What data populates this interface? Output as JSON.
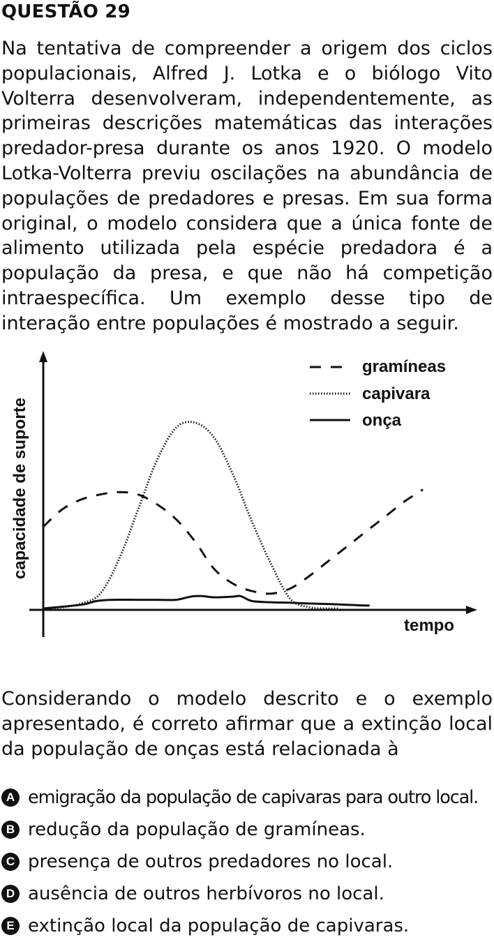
{
  "question": {
    "title": "QUESTÃO 29",
    "intro": "Na tentativa de compreender a origem dos ciclos populacionais, Alfred J. Lotka e o biólogo Vito Volterra desenvolveram, independentemente, as primeiras descrições matemáticas das interações predador-presa durante os anos 1920. O modelo Lotka-Volterra previu oscilações na abundância de populações de predadores e presas. Em sua forma original, o modelo considera que a única fonte de alimento utilizada pela espécie predadora é a população da presa, e que não há competição intraespecífica. Um exemplo desse tipo de interação entre populações é mostrado a seguir.",
    "prompt": "Considerando o modelo descrito e o exemplo apresentado, é correto afirmar que a extinção local da população de onças está relacionada à",
    "options": [
      {
        "letter": "A",
        "text": "emigração da população de capivaras para outro local."
      },
      {
        "letter": "B",
        "text": "redução da população de gramíneas."
      },
      {
        "letter": "C",
        "text": "presença de outros predadores no local."
      },
      {
        "letter": "D",
        "text": "ausência de outros herbívoros no local."
      },
      {
        "letter": "E",
        "text": "extinção local da população de capivaras."
      }
    ]
  },
  "chart_data": {
    "type": "line",
    "xlabel": "tempo",
    "ylabel": "capacidade de suporte",
    "xlim": [
      0,
      100
    ],
    "ylim": [
      0,
      100
    ],
    "grid": false,
    "legend": "top-right",
    "series": [
      {
        "name": "gramíneas",
        "style": "dashed",
        "color": "#111111",
        "x": [
          0,
          5,
          10,
          15,
          20,
          25,
          30,
          35,
          40,
          45,
          50,
          55,
          60,
          65,
          70,
          75,
          80,
          85,
          90,
          95,
          100
        ],
        "y": [
          33,
          40,
          44,
          46,
          47,
          46,
          42,
          36,
          27,
          16,
          10,
          7,
          6,
          8,
          13,
          19,
          25,
          31,
          37,
          43,
          48
        ]
      },
      {
        "name": "capivara",
        "style": "dotted",
        "color": "#111111",
        "x": [
          0,
          5,
          10,
          15,
          20,
          25,
          30,
          35,
          40,
          45,
          50,
          55,
          60,
          65,
          70,
          75,
          78
        ],
        "y": [
          0,
          0.5,
          2,
          6,
          20,
          40,
          60,
          73,
          75,
          69,
          54,
          35,
          18,
          4,
          0.5,
          0,
          0
        ]
      },
      {
        "name": "onça",
        "style": "solid",
        "color": "#111111",
        "x": [
          0,
          10,
          14,
          18,
          25,
          30,
          35,
          38,
          40,
          42,
          45,
          50,
          52,
          55,
          60,
          65,
          70,
          75,
          80,
          85,
          86
        ],
        "y": [
          0,
          1.5,
          3,
          3.5,
          3.5,
          3.5,
          3.5,
          4.5,
          5,
          5,
          4.5,
          4.8,
          5,
          3,
          2.5,
          2.3,
          2,
          1.8,
          1.5,
          1.2,
          1.2
        ]
      }
    ]
  }
}
